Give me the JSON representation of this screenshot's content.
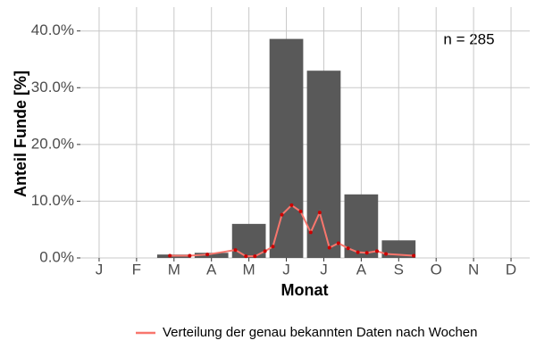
{
  "chart_data": {
    "type": "bar",
    "y_label": "Anteil Funde [%]",
    "x_label": "Monat",
    "annotation": "n = 285",
    "categories": [
      "J",
      "F",
      "M",
      "A",
      "M",
      "J",
      "J",
      "A",
      "S",
      "O",
      "N",
      "D"
    ],
    "values": [
      0,
      0,
      0.6,
      0.9,
      6.0,
      38.6,
      33.0,
      11.2,
      3.1,
      0,
      0,
      0
    ],
    "color": "#595959",
    "ylim": [
      0,
      44.2
    ],
    "yticks": [
      {
        "value": 0,
        "label": "0.0%"
      },
      {
        "value": 10,
        "label": "10.0%"
      },
      {
        "value": 20,
        "label": "20.0%"
      },
      {
        "value": 30,
        "label": "30.0%"
      },
      {
        "value": 40,
        "label": "40.0%"
      }
    ],
    "grid": true,
    "line": {
      "type": "line",
      "name": "Verteilung der genau bekannten Daten nach Wochen",
      "color": "#f8766d",
      "point_color": "#cc0000",
      "x": [
        2.89,
        3.42,
        3.89,
        4.64,
        4.92,
        5.16,
        5.43,
        5.64,
        5.88,
        6.14,
        6.38,
        6.65,
        6.89,
        7.15,
        7.39,
        7.65,
        7.91,
        8.15,
        8.42,
        8.66,
        9.4
      ],
      "values": [
        0.4,
        0.4,
        0.6,
        1.4,
        0.3,
        0.3,
        1.2,
        2.0,
        7.6,
        9.3,
        8.2,
        4.5,
        8.0,
        1.8,
        2.6,
        1.7,
        1.0,
        0.9,
        1.2,
        0.7,
        0.4
      ]
    },
    "legend": "bottom"
  }
}
